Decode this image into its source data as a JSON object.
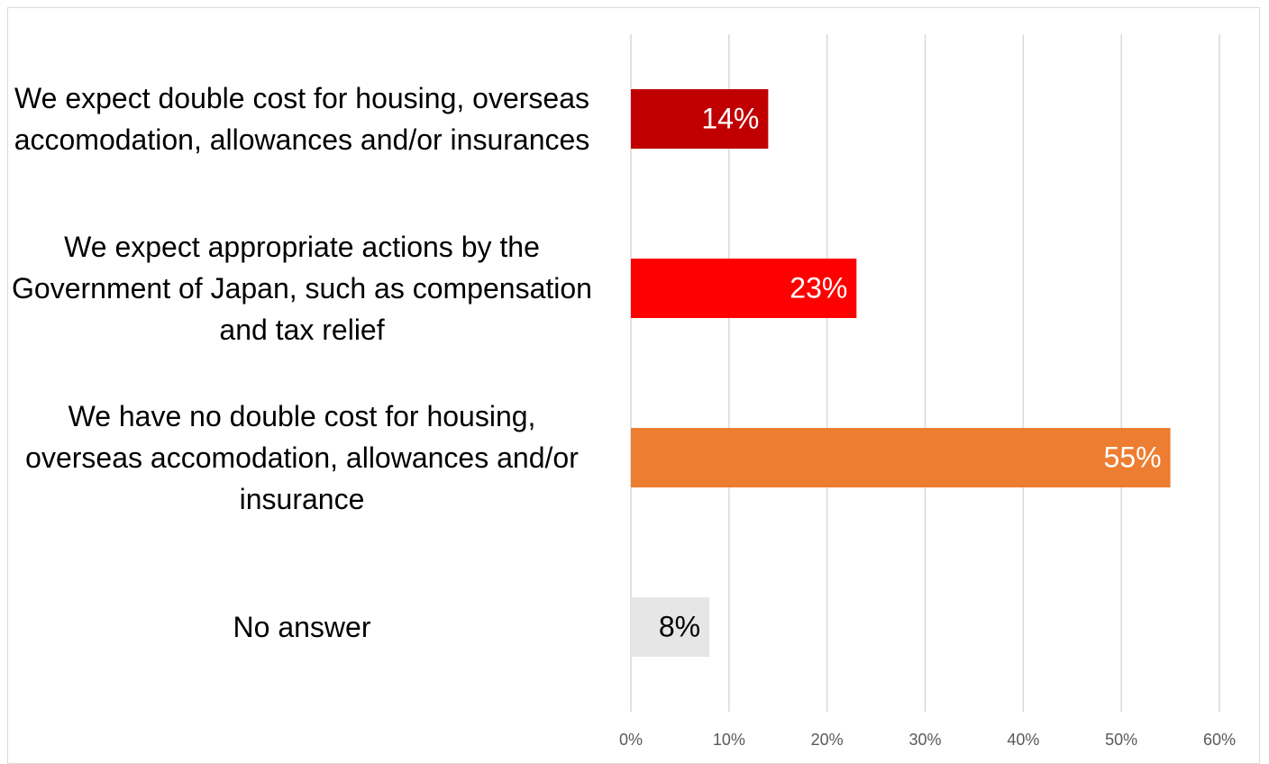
{
  "chart_data": {
    "type": "bar",
    "orientation": "horizontal",
    "categories": [
      "We expect double cost for housing, overseas accomodation, allowances and/or insurances",
      "We expect appropriate actions by the Government of Japan, such as compensation and tax relief",
      "We have no double cost for housing, overseas accomodation, allowances and/or insurance",
      "No answer"
    ],
    "values": [
      14,
      23,
      55,
      8
    ],
    "value_labels": [
      "14%",
      "23%",
      "55%",
      "8%"
    ],
    "colors": [
      "#c00000",
      "#ff0000",
      "#ed7d31",
      "#e7e6e6"
    ],
    "xlim": [
      0,
      60
    ],
    "xticks": [
      {
        "value": 0,
        "label": "0%"
      },
      {
        "value": 10,
        "label": "10%"
      },
      {
        "value": 20,
        "label": "20%"
      },
      {
        "value": 30,
        "label": "30%"
      },
      {
        "value": 40,
        "label": "40%"
      },
      {
        "value": 50,
        "label": "50%"
      },
      {
        "value": 60,
        "label": "60%"
      }
    ],
    "grid": true
  }
}
